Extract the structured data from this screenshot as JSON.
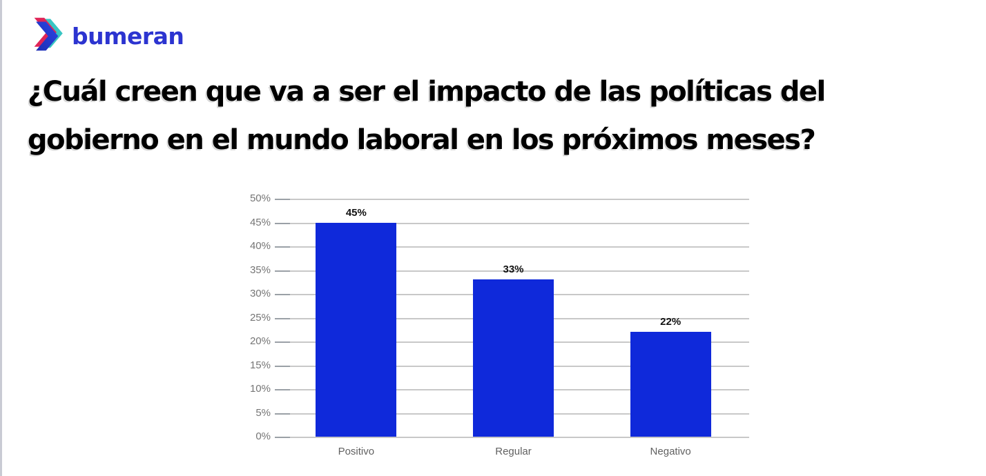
{
  "brand": {
    "name": "bumeran",
    "text_color": "#2c34d0",
    "icon_colors": {
      "teal": "#38c5c3",
      "pink": "#e02457",
      "blue_top": "#2b46e8",
      "blue_bottom": "#1d2db2"
    }
  },
  "heading": {
    "line1": "¿Cuál creen que va a ser el impacto de las políticas del",
    "line2": "gobierno en el mundo laboral en los próximos meses?"
  },
  "chart_data": {
    "type": "bar",
    "title": "¿Cuál creen que va a ser el impacto de las políticas del gobierno en el mundo laboral en los próximos meses?",
    "categories": [
      "Positivo",
      "Regular",
      "Negativo"
    ],
    "values": [
      45,
      33,
      22
    ],
    "data_labels": [
      "45%",
      "33%",
      "22%"
    ],
    "y_ticks": [
      "50%",
      "45%",
      "40%",
      "35%",
      "30%",
      "25%",
      "20%",
      "15%",
      "10%",
      "5%",
      "0%"
    ],
    "ylim": [
      0,
      50
    ],
    "xlabel": "",
    "ylabel": "",
    "grid": true,
    "legend": "none",
    "bar_color": "#0f29da",
    "gridline_color": "#c8c8c8",
    "axis_text_color": "#757575"
  }
}
